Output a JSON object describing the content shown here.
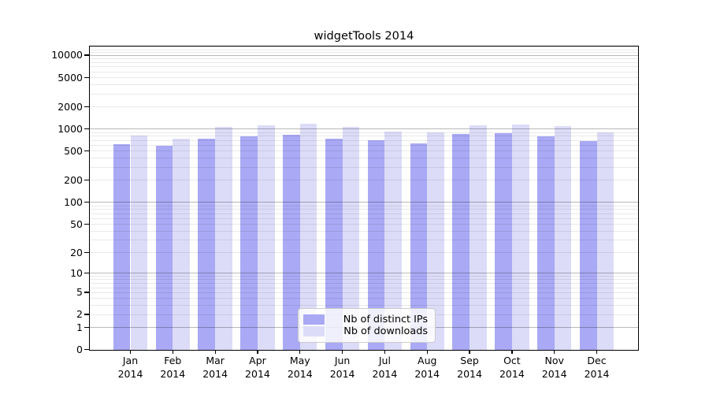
{
  "chart_data": {
    "type": "bar",
    "title": "widgetTools 2014",
    "y_scale": "log10(1+x)",
    "categories": [
      "Jan",
      "Feb",
      "Mar",
      "Apr",
      "May",
      "Jun",
      "Jul",
      "Aug",
      "Sep",
      "Oct",
      "Nov",
      "Dec"
    ],
    "category_year": "2014",
    "series": [
      {
        "name": "Nb of distinct IPs",
        "color": "#a9a9f5",
        "values": [
          610,
          585,
          735,
          795,
          825,
          730,
          700,
          625,
          845,
          870,
          780,
          675
        ]
      },
      {
        "name": "Nb of downloads",
        "color": "#dcdcf8",
        "values": [
          810,
          735,
          1060,
          1110,
          1175,
          1065,
          920,
          895,
          1105,
          1150,
          1090,
          895
        ]
      }
    ],
    "y_ticks": [
      0,
      1,
      2,
      5,
      10,
      20,
      50,
      100,
      200,
      500,
      1000,
      2000,
      5000,
      10000
    ],
    "ylim": [
      0,
      13200
    ],
    "xlabel": "",
    "ylabel": "",
    "grid": true,
    "legend_position": "lower-center-inside",
    "colors": {
      "axis": "#000000",
      "major_grid": "#b9b9b9",
      "minor_grid": "#eaeaea",
      "background": "#ffffff",
      "text": "#000000"
    }
  }
}
